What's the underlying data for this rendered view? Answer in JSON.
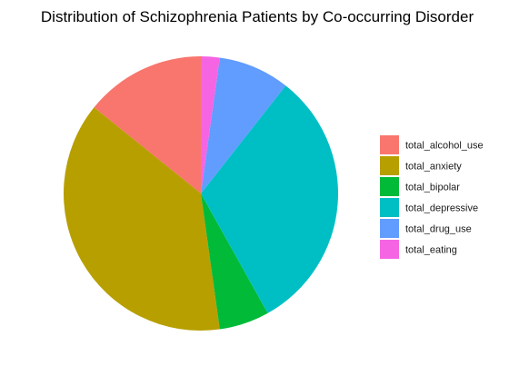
{
  "chart_data": {
    "type": "pie",
    "title": "Distribution of Schizophrenia Patients by Co-occurring Disorder",
    "legend_position": "right",
    "start_angle_deg": 0,
    "direction": "counterclockwise",
    "slices": [
      {
        "label": "total_alcohol_use",
        "percent": 14.2,
        "color": "#F8766D"
      },
      {
        "label": "total_anxiety",
        "percent": 38.0,
        "color": "#B79F00"
      },
      {
        "label": "total_bipolar",
        "percent": 5.9,
        "color": "#00BA38"
      },
      {
        "label": "total_depressive",
        "percent": 31.3,
        "color": "#00BFC4"
      },
      {
        "label": "total_drug_use",
        "percent": 8.4,
        "color": "#619CFF"
      },
      {
        "label": "total_eating",
        "percent": 2.2,
        "color": "#F564E3"
      }
    ]
  }
}
